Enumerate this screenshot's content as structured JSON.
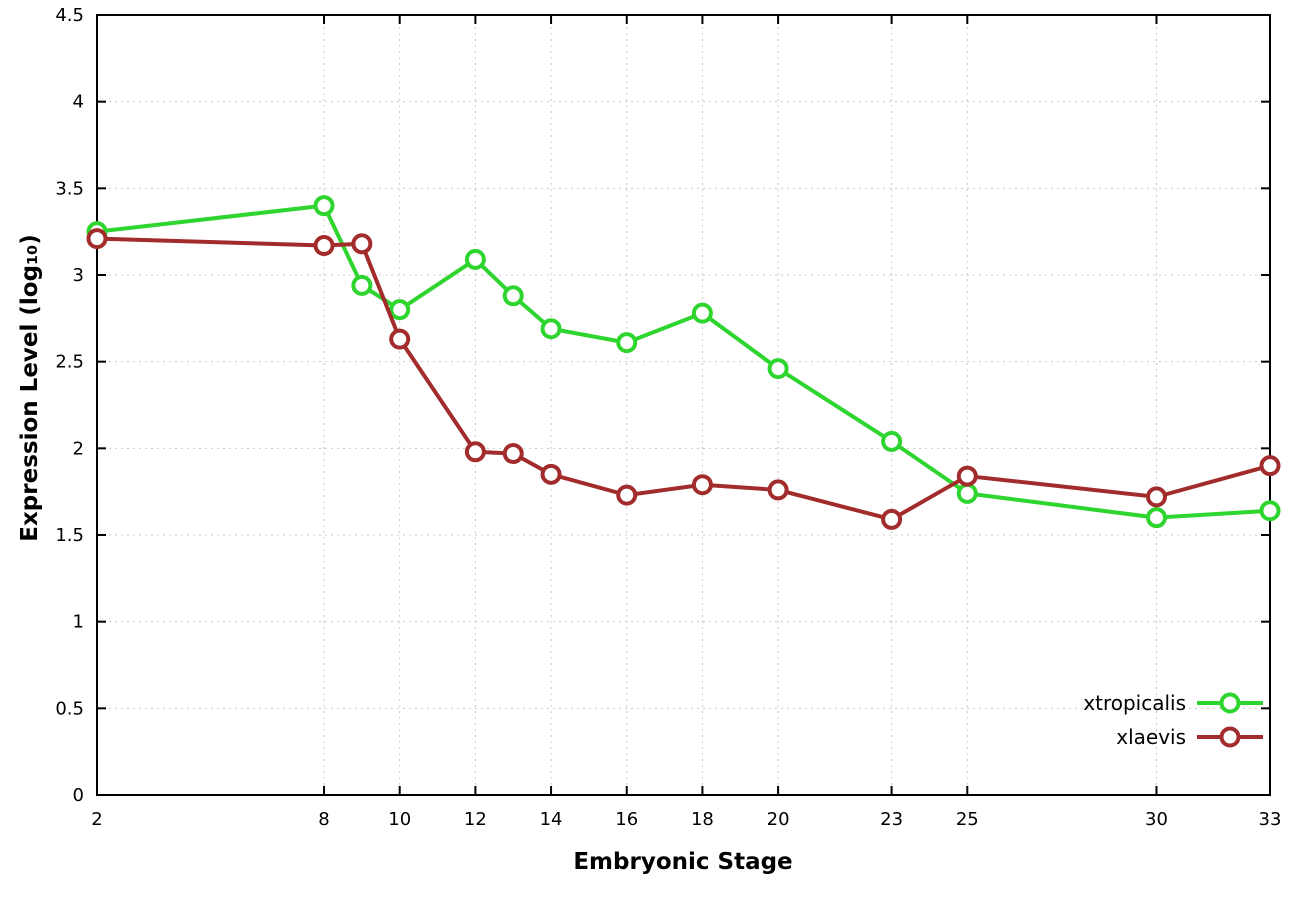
{
  "chart_data": {
    "type": "line",
    "title": "",
    "xlabel": "Embryonic Stage",
    "ylabel": "Expression Level (log₁₀)",
    "x": [
      2,
      8,
      9,
      10,
      12,
      13,
      14,
      16,
      18,
      20,
      23,
      25,
      30,
      33
    ],
    "series": [
      {
        "name": "xtropicalis",
        "color": "#2fd52f",
        "values": [
          3.25,
          3.4,
          2.94,
          2.8,
          3.09,
          2.88,
          2.69,
          2.61,
          2.78,
          2.46,
          2.04,
          1.74,
          1.6,
          1.64
        ]
      },
      {
        "name": "xlaevis",
        "color": "#a22c2c",
        "values": [
          3.21,
          3.17,
          3.18,
          2.63,
          1.98,
          1.97,
          1.85,
          1.73,
          1.79,
          1.76,
          1.59,
          1.84,
          1.72,
          1.9
        ]
      }
    ],
    "xlim": [
      2,
      33
    ],
    "ylim": [
      0,
      4.5
    ],
    "xticks": [
      2,
      8,
      10,
      12,
      14,
      16,
      18,
      20,
      23,
      25,
      30,
      33
    ],
    "yticks": [
      0,
      0.5,
      1,
      1.5,
      2,
      2.5,
      3,
      3.5,
      4,
      4.5
    ],
    "grid": true,
    "legend_position": "bottom-right",
    "background": "#ffffff",
    "border_color": "#000000",
    "grid_color": "#c8c8c8"
  }
}
